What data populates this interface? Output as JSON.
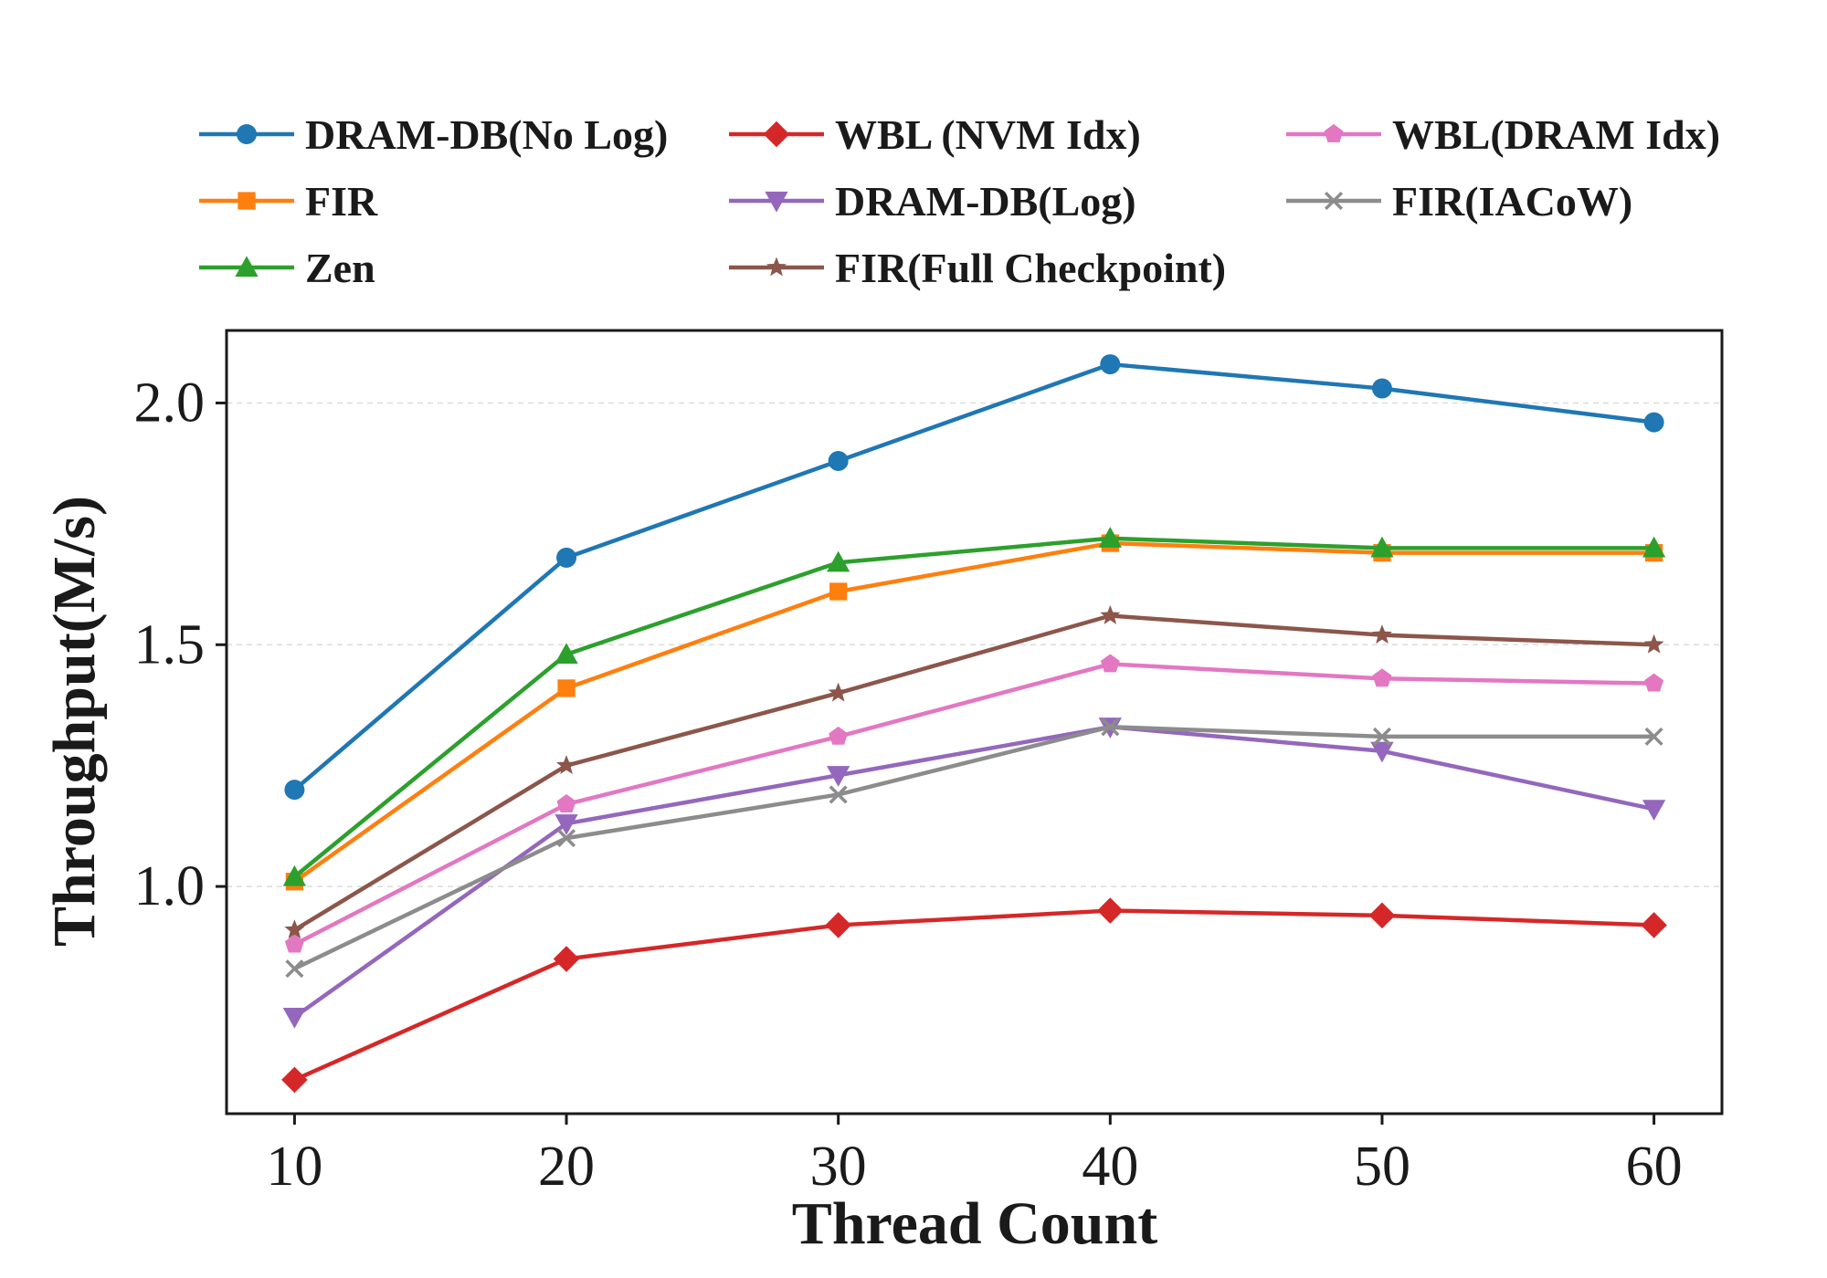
{
  "chart_data": {
    "type": "line",
    "xlabel": "Thread Count",
    "ylabel": "Throughput(M/s)",
    "x": [
      10,
      20,
      30,
      40,
      50,
      60
    ],
    "xticks": [
      "10",
      "20",
      "30",
      "40",
      "50",
      "60"
    ],
    "xlim": [
      7.5,
      62.5
    ],
    "yticks": [
      "1.0",
      "1.5",
      "2.0"
    ],
    "ylim": [
      0.53,
      2.15
    ],
    "grid": "horizontal dashed",
    "legend_position": "top",
    "series": [
      {
        "name": "DRAM-DB(No Log)",
        "color": "#1f77b4",
        "marker": "circle",
        "values": [
          1.2,
          1.68,
          1.88,
          2.08,
          2.03,
          1.96
        ]
      },
      {
        "name": "WBL (NVM Idx)",
        "color": "#d62728",
        "marker": "diamond",
        "values": [
          0.6,
          0.85,
          0.92,
          0.95,
          0.94,
          0.92
        ]
      },
      {
        "name": "WBL(DRAM Idx)",
        "color": "#e377c2",
        "marker": "pentagon",
        "values": [
          0.88,
          1.17,
          1.31,
          1.46,
          1.43,
          1.42
        ]
      },
      {
        "name": "FIR",
        "color": "#ff7f0e",
        "marker": "square",
        "values": [
          1.01,
          1.41,
          1.61,
          1.71,
          1.69,
          1.69
        ]
      },
      {
        "name": "DRAM-DB(Log)",
        "color": "#9467bd",
        "marker": "triangle-down",
        "values": [
          0.73,
          1.13,
          1.23,
          1.33,
          1.28,
          1.16
        ]
      },
      {
        "name": "FIR(IACoW)",
        "color": "#8c8c8c",
        "marker": "x",
        "values": [
          0.83,
          1.1,
          1.19,
          1.33,
          1.31,
          1.31
        ]
      },
      {
        "name": "Zen",
        "color": "#2ca02c",
        "marker": "triangle-up",
        "values": [
          1.02,
          1.48,
          1.67,
          1.72,
          1.7,
          1.7
        ]
      },
      {
        "name": "FIR(Full Checkpoint)",
        "color": "#8c564b",
        "marker": "star",
        "values": [
          0.91,
          1.25,
          1.4,
          1.56,
          1.52,
          1.5
        ]
      }
    ]
  }
}
